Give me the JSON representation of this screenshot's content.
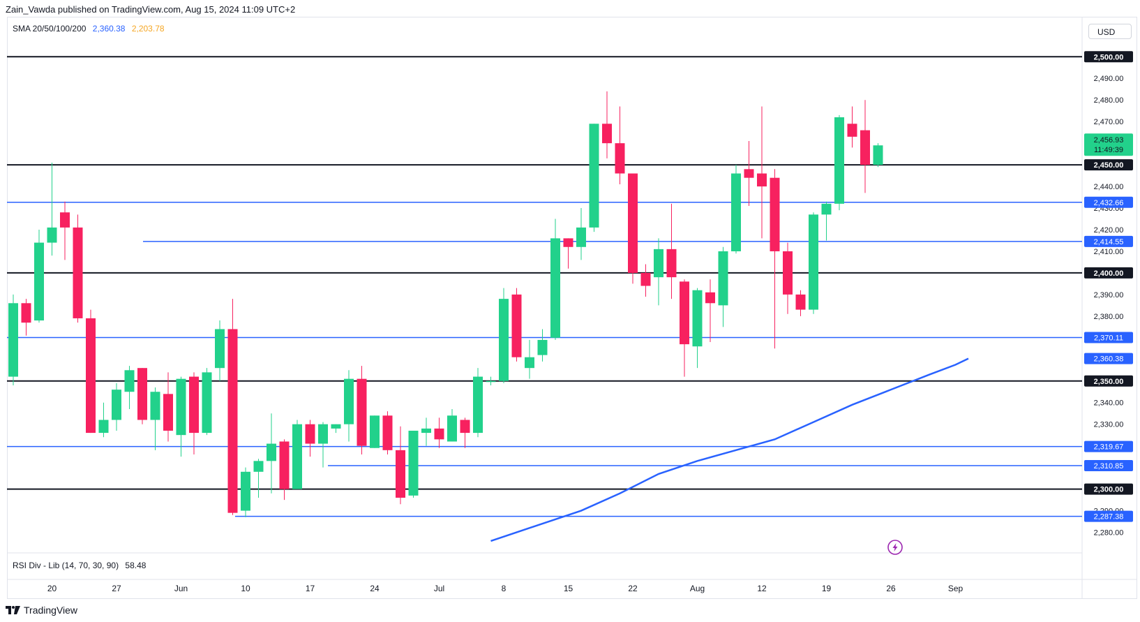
{
  "header": {
    "text": "Zain_Vawda published on TradingView.com, Aug 15, 2024 11:09 UTC+2"
  },
  "legend": {
    "sma_label": "SMA 20/50/100/200",
    "sma_value_1": "2,360.38",
    "sma_value_2": "2,203.78"
  },
  "currency": "USD",
  "rsi_legend": {
    "label": "RSI Div - Lib (14, 70, 30, 90)",
    "value": "58.48"
  },
  "footer": {
    "brand": "TradingView"
  },
  "colors": {
    "up": "#22d18b",
    "down": "#f7215f",
    "level_black": "#131722",
    "level_blue": "#2962ff",
    "sma": "#2962ff"
  },
  "chart_data": {
    "type": "candlestick",
    "x_ticks": [
      "20",
      "27",
      "Jun",
      "10",
      "17",
      "24",
      "Jul",
      "8",
      "15",
      "22",
      "Aug",
      "12",
      "19",
      "26",
      "Sep"
    ],
    "y_ticks": [
      "2,280.00",
      "2,290.00",
      "2,300.00",
      "2,310.00",
      "2,320.00",
      "2,330.00",
      "2,340.00",
      "2,350.00",
      "2,360.00",
      "2,370.00",
      "2,380.00",
      "2,390.00",
      "2,400.00",
      "2,410.00",
      "2,420.00",
      "2,430.00",
      "2,440.00",
      "2,450.00",
      "2,460.00",
      "2,470.00",
      "2,480.00",
      "2,490.00",
      "2,500.00"
    ],
    "ylim": [
      2276,
      2502
    ],
    "candles": [
      [
        2352,
        2386,
        2348,
        2390
      ],
      [
        2386,
        2377,
        2371,
        2388
      ],
      [
        2378,
        2414,
        2377,
        2420
      ],
      [
        2414,
        2421,
        2408,
        2451
      ],
      [
        2428,
        2421,
        2406,
        2433
      ],
      [
        2421,
        2379,
        2377,
        2427
      ],
      [
        2379,
        2326,
        2326,
        2383
      ],
      [
        2326,
        2332,
        2324,
        2340
      ],
      [
        2332,
        2346,
        2327,
        2349
      ],
      [
        2345,
        2355,
        2337,
        2357
      ],
      [
        2356,
        2332,
        2330,
        2356
      ],
      [
        2332,
        2345,
        2318,
        2347
      ],
      [
        2344,
        2327,
        2322,
        2354
      ],
      [
        2325,
        2351,
        2315,
        2352
      ],
      [
        2352,
        2326,
        2316,
        2354
      ],
      [
        2326,
        2354,
        2325,
        2356
      ],
      [
        2356,
        2374,
        2350,
        2378
      ],
      [
        2374,
        2289,
        2288,
        2388
      ],
      [
        2290,
        2308,
        2287,
        2310
      ],
      [
        2308,
        2313,
        2296,
        2314
      ],
      [
        2313,
        2321,
        2298,
        2335
      ],
      [
        2322,
        2300,
        2295,
        2323
      ],
      [
        2300,
        2330,
        2301,
        2332
      ],
      [
        2330,
        2321,
        2315,
        2332
      ],
      [
        2321,
        2330,
        2310,
        2331
      ],
      [
        2328,
        2330,
        2326,
        2330
      ],
      [
        2330,
        2351,
        2322,
        2355
      ],
      [
        2351,
        2320,
        2316,
        2357
      ],
      [
        2319,
        2334,
        2319,
        2334
      ],
      [
        2334,
        2318,
        2316,
        2336
      ],
      [
        2318,
        2296,
        2293,
        2329
      ],
      [
        2297,
        2327,
        2296,
        2327
      ],
      [
        2326,
        2328,
        2320,
        2333
      ],
      [
        2328,
        2323,
        2319,
        2333
      ],
      [
        2322,
        2334,
        2322,
        2337
      ],
      [
        2332,
        2326,
        2319,
        2333
      ],
      [
        2326,
        2352,
        2324,
        2356
      ],
      [
        2350,
        2350,
        2348,
        2352
      ],
      [
        2350,
        2388,
        2349,
        2393
      ],
      [
        2390,
        2361,
        2359,
        2393
      ],
      [
        2356,
        2361,
        2351,
        2369
      ],
      [
        2362,
        2369,
        2359,
        2374
      ],
      [
        2370,
        2416,
        2369,
        2425
      ],
      [
        2416,
        2412,
        2402,
        2416
      ],
      [
        2412,
        2421,
        2406,
        2430
      ],
      [
        2421,
        2469,
        2419,
        2469
      ],
      [
        2469,
        2460,
        2453,
        2484
      ],
      [
        2460,
        2446,
        2441,
        2477
      ],
      [
        2446,
        2400,
        2395,
        2446
      ],
      [
        2400,
        2394,
        2389,
        2404
      ],
      [
        2398,
        2411,
        2385,
        2416
      ],
      [
        2411,
        2398,
        2388,
        2432
      ],
      [
        2396,
        2367,
        2352,
        2397
      ],
      [
        2366,
        2392,
        2356,
        2393
      ],
      [
        2391,
        2386,
        2368,
        2397
      ],
      [
        2385,
        2410,
        2375,
        2412
      ],
      [
        2410,
        2446,
        2409,
        2450
      ],
      [
        2448,
        2444,
        2431,
        2461
      ],
      [
        2446,
        2440,
        2416,
        2477
      ],
      [
        2444,
        2410,
        2365,
        2448
      ],
      [
        2410,
        2390,
        2381,
        2414
      ],
      [
        2390,
        2383,
        2380,
        2392
      ],
      [
        2383,
        2427,
        2381,
        2428
      ],
      [
        2427,
        2432,
        2415,
        2433
      ],
      [
        2432,
        2472,
        2429,
        2473
      ],
      [
        2469,
        2463,
        2458,
        2477
      ],
      [
        2466,
        2450,
        2437,
        2480
      ],
      [
        2450,
        2459,
        2449,
        2460
      ]
    ],
    "horizontal_levels": [
      {
        "value": 2500.0,
        "label": "2,500.00",
        "color": "black"
      },
      {
        "value": 2450.0,
        "label": "2,450.00",
        "color": "black"
      },
      {
        "value": 2432.66,
        "label": "2,432.66",
        "color": "blue"
      },
      {
        "value": 2414.55,
        "label": "2,414.55",
        "color": "blue"
      },
      {
        "value": 2400.0,
        "label": "2,400.00",
        "color": "black"
      },
      {
        "value": 2370.11,
        "label": "2,370.11",
        "color": "blue"
      },
      {
        "value": 2350.0,
        "label": "2,350.00",
        "color": "black"
      },
      {
        "value": 2319.67,
        "label": "2,319.67",
        "color": "blue"
      },
      {
        "value": 2310.85,
        "label": "2,310.85",
        "color": "blue"
      },
      {
        "value": 2300.0,
        "label": "2,300.00",
        "color": "black"
      },
      {
        "value": 2287.38,
        "label": "2,287.38",
        "color": "blue"
      }
    ],
    "sma_line": {
      "label": "2,360.38",
      "points": [
        [
          37,
          2276
        ],
        [
          44,
          2290
        ],
        [
          47,
          2298
        ],
        [
          50,
          2307
        ],
        [
          53,
          2313
        ],
        [
          56,
          2318
        ],
        [
          59,
          2323
        ],
        [
          62,
          2331
        ],
        [
          65,
          2339
        ],
        [
          68,
          2346
        ],
        [
          71,
          2353
        ],
        [
          73,
          2357.5
        ],
        [
          74,
          2360.38
        ]
      ]
    },
    "current_price": {
      "price": "2,456.93",
      "countdown": "11:49:39"
    }
  }
}
